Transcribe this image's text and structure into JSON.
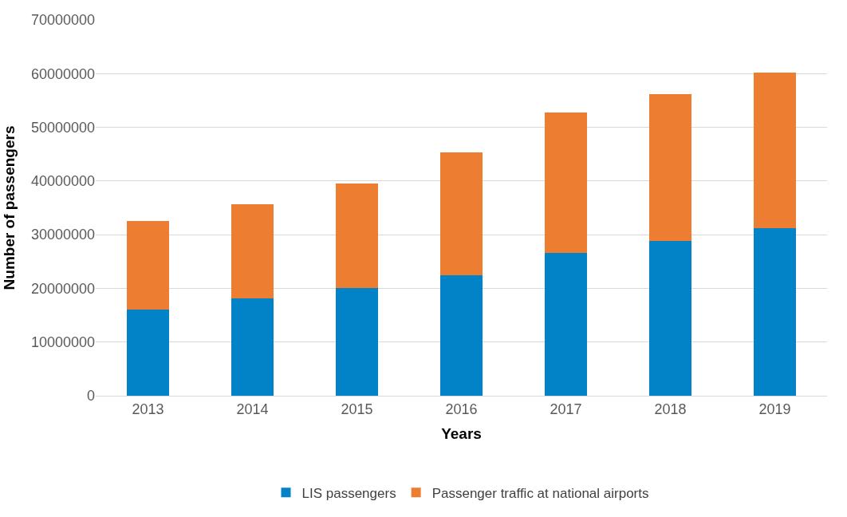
{
  "chart_data": {
    "type": "bar",
    "stacked": true,
    "xlabel": "Years",
    "ylabel": "Number of passengers",
    "categories": [
      "2013",
      "2014",
      "2015",
      "2016",
      "2017",
      "2018",
      "2019"
    ],
    "series": [
      {
        "name": "LIS passengers",
        "color": "#0383c7",
        "values": [
          16000000,
          18100000,
          20000000,
          22400000,
          26600000,
          28900000,
          31200000
        ]
      },
      {
        "name": "Passenger traffic at national airports",
        "color": "#ed7d31",
        "values": [
          16600000,
          17500000,
          19600000,
          22900000,
          26100000,
          27300000,
          29000000
        ]
      }
    ],
    "ylim": [
      0,
      70000000
    ],
    "yticks": [
      0,
      10000000,
      20000000,
      30000000,
      40000000,
      50000000,
      60000000,
      70000000
    ],
    "grid": "y",
    "legend": "bottom"
  }
}
